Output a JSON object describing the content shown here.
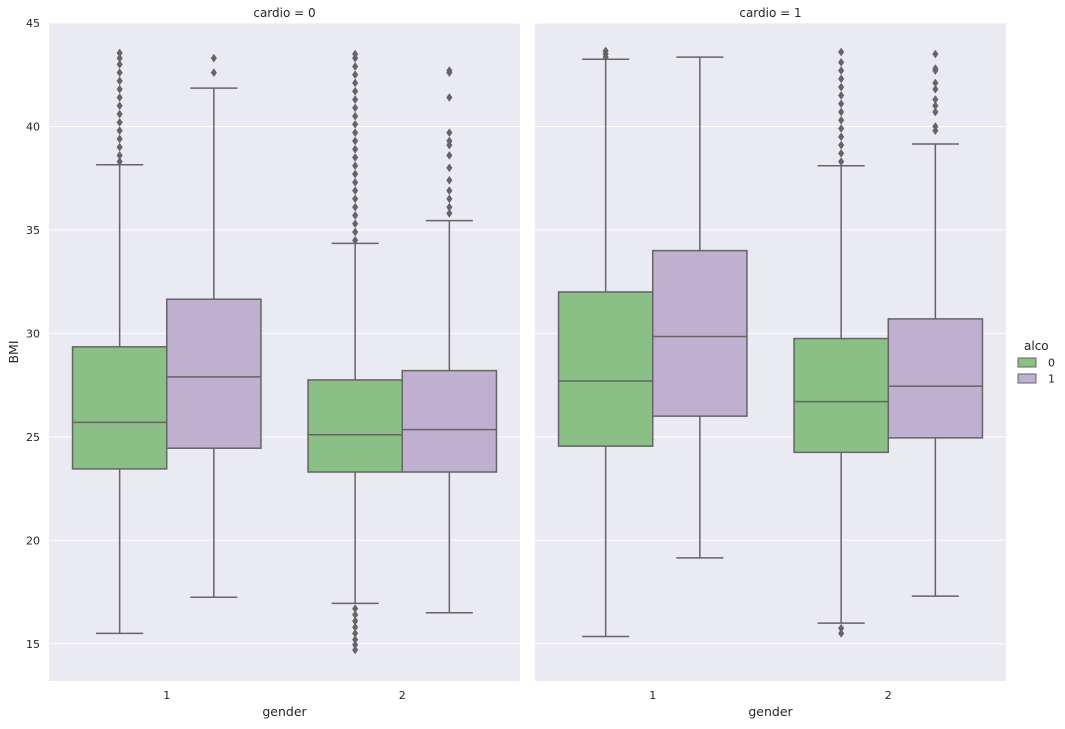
{
  "chart_data": {
    "type": "box",
    "colors": {
      "panel_bg": "#eaeaf2",
      "grid": "#ffffff",
      "box_line": "#656565",
      "alco_0": "#8abf85",
      "alco_1": "#bfb0cf"
    },
    "x_label": "gender",
    "y_label": "BMI",
    "categories": [
      "1",
      "2"
    ],
    "ylim": [
      13.2,
      45
    ],
    "y_ticks": [
      15,
      20,
      25,
      30,
      35,
      40,
      45
    ],
    "grid": true,
    "legend": {
      "title": "alco",
      "placement": "right",
      "items": [
        {
          "label": "0",
          "hue": "0"
        },
        {
          "label": "1",
          "hue": "1"
        }
      ]
    },
    "facets": [
      {
        "title": "cardio = 0",
        "boxes": [
          {
            "category": "1",
            "hue": "0",
            "whisker_low": 15.5,
            "q1": 23.45,
            "median": 25.7,
            "q3": 29.35,
            "whisker_high": 38.15,
            "outliers_high": [
              38.3,
              38.6,
              39.0,
              39.4,
              39.8,
              40.2,
              40.6,
              41.0,
              41.4,
              41.8,
              42.2,
              42.6,
              43.0,
              43.3,
              43.55
            ],
            "outliers_low": []
          },
          {
            "category": "1",
            "hue": "1",
            "whisker_low": 17.25,
            "q1": 24.45,
            "median": 27.9,
            "q3": 31.65,
            "whisker_high": 41.85,
            "outliers_high": [
              42.6,
              43.3
            ],
            "outliers_low": []
          },
          {
            "category": "2",
            "hue": "0",
            "whisker_low": 16.95,
            "q1": 23.3,
            "median": 25.1,
            "q3": 27.75,
            "whisker_high": 34.35,
            "outliers_high": [
              34.5,
              34.9,
              35.3,
              35.7,
              36.1,
              36.5,
              36.9,
              37.3,
              37.7,
              38.1,
              38.5,
              38.9,
              39.3,
              39.7,
              40.1,
              40.5,
              40.9,
              41.3,
              41.7,
              42.1,
              42.5,
              42.9,
              43.3,
              43.5
            ],
            "outliers_low": [
              16.7,
              16.4,
              16.1,
              15.8,
              15.5,
              15.2,
              14.95,
              14.7
            ]
          },
          {
            "category": "2",
            "hue": "1",
            "whisker_low": 16.5,
            "q1": 23.3,
            "median": 25.35,
            "q3": 28.2,
            "whisker_high": 35.45,
            "outliers_high": [
              35.8,
              36.1,
              36.5,
              36.9,
              37.4,
              38.0,
              38.6,
              39.1,
              39.3,
              39.7,
              41.4,
              42.6,
              42.7
            ],
            "outliers_low": []
          }
        ]
      },
      {
        "title": "cardio = 1",
        "boxes": [
          {
            "category": "1",
            "hue": "0",
            "whisker_low": 15.35,
            "q1": 24.55,
            "median": 27.7,
            "q3": 32.0,
            "whisker_high": 43.25,
            "outliers_high": [
              43.35,
              43.5,
              43.65
            ],
            "outliers_low": []
          },
          {
            "category": "1",
            "hue": "1",
            "whisker_low": 19.15,
            "q1": 26.0,
            "median": 29.85,
            "q3": 34.0,
            "whisker_high": 43.35,
            "outliers_high": [],
            "outliers_low": []
          },
          {
            "category": "2",
            "hue": "0",
            "whisker_low": 16.0,
            "q1": 24.25,
            "median": 26.7,
            "q3": 29.75,
            "whisker_high": 38.1,
            "outliers_high": [
              38.3,
              38.7,
              39.1,
              39.5,
              39.9,
              40.3,
              40.7,
              41.1,
              41.5,
              41.9,
              42.3,
              42.7,
              43.1,
              43.6
            ],
            "outliers_low": [
              15.75,
              15.5
            ]
          },
          {
            "category": "2",
            "hue": "1",
            "whisker_low": 17.3,
            "q1": 24.95,
            "median": 27.45,
            "q3": 30.7,
            "whisker_high": 39.15,
            "outliers_high": [
              39.8,
              40.0,
              40.7,
              41.0,
              41.3,
              41.8,
              42.1,
              42.7,
              42.8,
              43.5
            ],
            "outliers_low": []
          }
        ]
      }
    ]
  }
}
